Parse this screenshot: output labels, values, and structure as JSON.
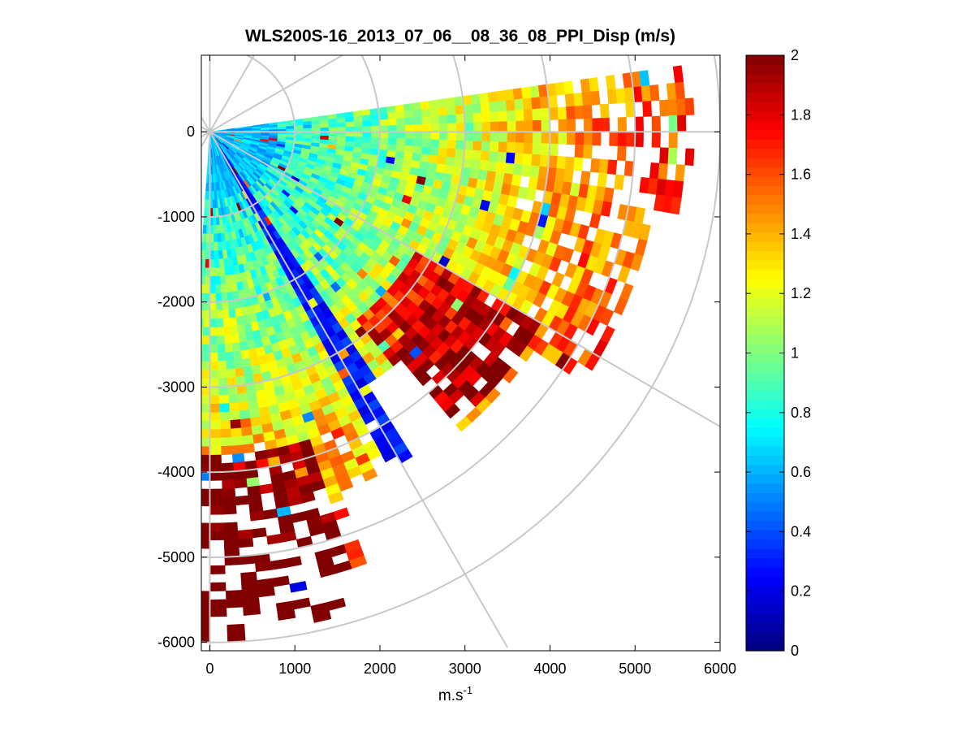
{
  "chart_data": {
    "type": "heatmap",
    "subtype": "polar-ppi-scan",
    "title": "WLS200S-16_2013_07_06__08_36_08_PPI_Disp (m/s)",
    "xlabel": "m.s",
    "xlabel_superscript": "-1",
    "ylabel": "",
    "xlim": [
      -100,
      6000
    ],
    "ylim": [
      -6100,
      900
    ],
    "xticks": [
      0,
      1000,
      2000,
      3000,
      4000,
      5000,
      6000
    ],
    "yticks": [
      0,
      -1000,
      -2000,
      -3000,
      -4000,
      -5000,
      -6000
    ],
    "grid": {
      "range_rings_m": [
        1000,
        2000,
        3000,
        4000,
        5000,
        6000
      ],
      "spoke_angles_deg": [
        0,
        30,
        60,
        90,
        120,
        150
      ]
    },
    "scan": {
      "origin": [
        0,
        0
      ],
      "azimuth_start_deg": 8,
      "azimuth_end_deg": -93,
      "max_range_m": 6000,
      "range_gate_m": 100,
      "notes": "Low dispersion (~0.6-0.9) near the origin; a wedge of very low values (~0.1-0.3) along bearing about -60 deg; values above 2 (saturated, dark red) beyond ~4000 m range and in the south-east sector at 3000-4500 m."
    },
    "colorbar": {
      "colormap": "jet",
      "min": 0,
      "max": 2,
      "ticks": [
        "0",
        "0.2",
        "0.4",
        "0.6",
        "0.8",
        "1",
        "1.2",
        "1.4",
        "1.6",
        "1.8",
        "2"
      ]
    }
  }
}
